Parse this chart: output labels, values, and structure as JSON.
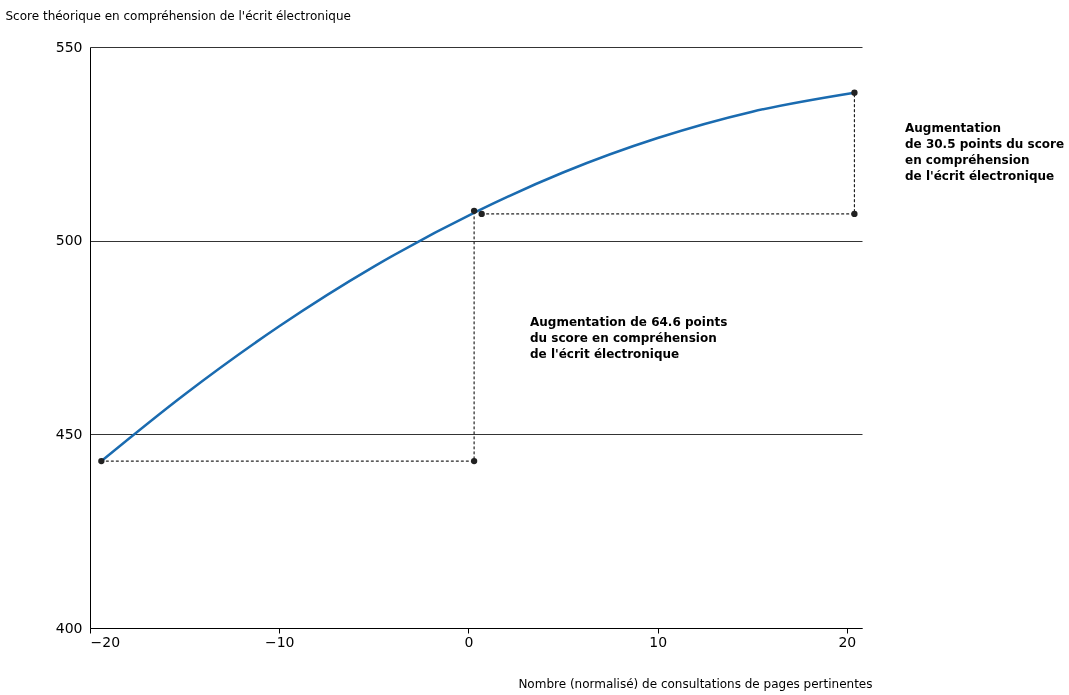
{
  "chart_data": {
    "type": "line",
    "xlabel": "Nombre (normalisé) de consultations de pages pertinentes",
    "ylabel": "Score théorique en compréhension de l'écrit électronique",
    "xlim": [
      -20,
      20.8
    ],
    "xticks": [
      -20,
      -10,
      0,
      10,
      20
    ],
    "ylim": [
      400,
      550
    ],
    "yticks": [
      400,
      450,
      500,
      550
    ],
    "grid": "y",
    "series": [
      {
        "color": "#1a6bb0",
        "x": [
          -19.4,
          -15,
          -10,
          -5,
          0.5,
          5,
          10,
          15,
          20.4
        ],
        "values": [
          443.1,
          460.3,
          477.9,
          493.3,
          507.7,
          517.6,
          526.5,
          533.3,
          538.2
        ],
        "line_style": "solid",
        "marker": "none"
      },
      {
        "color": "#222222",
        "x": [
          -19.4,
          0.3,
          0.3
        ],
        "values": [
          443.1,
          443.1,
          507.7
        ],
        "line_style": "dotted",
        "marker": "circle"
      },
      {
        "color": "#222222",
        "x": [
          0.7,
          20.4,
          20.4
        ],
        "values": [
          506.9,
          506.9,
          538.2
        ],
        "line_style": "dotted",
        "marker": "circle"
      }
    ],
    "annotations": [
      "Augmentation de 64.6 points\ndu score en compréhension\nde l'écrit électronique",
      "Augmentation\nde 30.5 points du score\nen compréhension\nde l'écrit électronique"
    ]
  }
}
